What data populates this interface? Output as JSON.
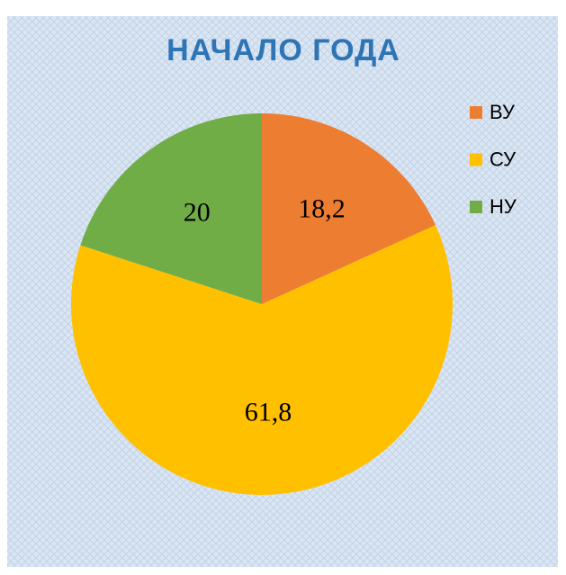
{
  "chart_data": {
    "type": "pie",
    "title": "НАЧАЛО ГОДА",
    "categories": [
      "ВУ",
      "СУ",
      "НУ"
    ],
    "values": [
      18.2,
      61.8,
      20
    ],
    "value_labels": [
      "18,2",
      "61,8",
      "20"
    ],
    "colors": [
      "#ed7d31",
      "#ffc000",
      "#70ad47"
    ],
    "legend": "right"
  }
}
